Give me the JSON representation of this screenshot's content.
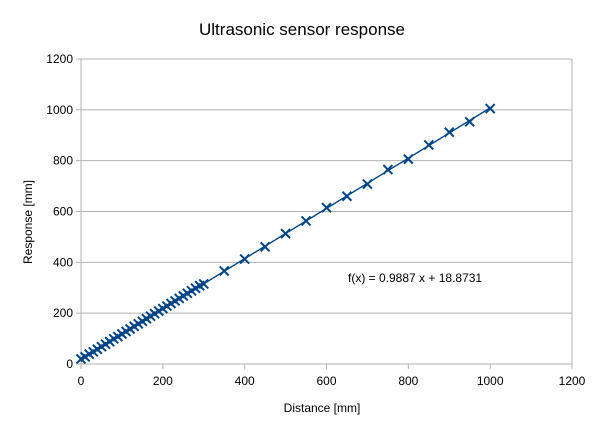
{
  "chart_data": {
    "type": "scatter",
    "title": "Ultrasonic sensor response",
    "xlabel": "Distance [mm]",
    "ylabel": "Response [mm]",
    "xlim": [
      0,
      1200
    ],
    "ylim": [
      0,
      1200
    ],
    "xticks": [
      0,
      200,
      400,
      600,
      800,
      1000,
      1200
    ],
    "yticks": [
      0,
      200,
      400,
      600,
      800,
      1000,
      1200
    ],
    "grid": "horizontal",
    "marker": "x",
    "color": "#004586",
    "series": [
      {
        "x": [
          0,
          10,
          20,
          30,
          40,
          50,
          60,
          70,
          80,
          90,
          100,
          110,
          120,
          130,
          140,
          150,
          160,
          170,
          180,
          190,
          200,
          210,
          220,
          230,
          240,
          250,
          260,
          270,
          280,
          290,
          300,
          350,
          400,
          450,
          500,
          550,
          600,
          650,
          700,
          750,
          800,
          850,
          900,
          950,
          1000
        ],
        "y": [
          20,
          28,
          39,
          48,
          58,
          68,
          78,
          88,
          99,
          108,
          118,
          128,
          138,
          148,
          158,
          168,
          178,
          188,
          198,
          208,
          218,
          228,
          238,
          248,
          258,
          268,
          278,
          288,
          298,
          308,
          315,
          366,
          413,
          461,
          513,
          563,
          615,
          660,
          708,
          765,
          806,
          862,
          912,
          953,
          1005
        ]
      }
    ],
    "trendline": {
      "slope": 0.9887,
      "intercept": 18.8731,
      "x_range": [
        0,
        1000
      ],
      "label": "f(x) = 0.9887 x + 18.8731"
    }
  }
}
